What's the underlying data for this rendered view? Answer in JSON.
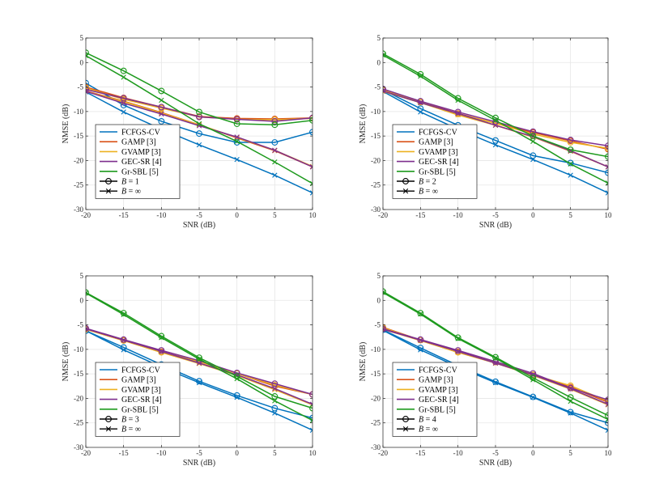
{
  "chart_data": [
    {
      "type": "line",
      "panel": "top-left",
      "xlabel": "SNR (dB)",
      "ylabel": "NMSE (dB)",
      "xlim": [
        -20,
        10
      ],
      "ylim": [
        -30,
        5
      ],
      "xticks": [
        -20,
        -15,
        -10,
        -5,
        0,
        5,
        10
      ],
      "yticks": [
        5,
        0,
        -5,
        -10,
        -15,
        -20,
        -25,
        -30
      ],
      "grid": true,
      "legend_position": "bottom-left",
      "legend_labels": [
        "FCFGS-CV",
        "GAMP [3]",
        "GVAMP [3]",
        "GEC-SR [4]",
        "Gr-SBL [5]"
      ],
      "marker_legend": [
        {
          "marker": "circle",
          "label_var": "B",
          "label_val": "1"
        },
        {
          "marker": "cross",
          "label_var": "B",
          "label_val": "∞"
        }
      ],
      "x": [
        -20,
        -15,
        -10,
        -5,
        0,
        5,
        10
      ],
      "series": [
        {
          "name": "FCFGS-CV",
          "marker": "circle",
          "values": [
            -4.2,
            -8.7,
            -12.0,
            -14.5,
            -16.3,
            -16.3,
            -14.2
          ]
        },
        {
          "name": "FCFGS-CV",
          "marker": "cross",
          "values": [
            -6.0,
            -10.1,
            -13.6,
            -16.8,
            -19.8,
            -23.0,
            -26.6
          ]
        },
        {
          "name": "GAMP [3]",
          "marker": "circle",
          "values": [
            -5.0,
            -7.2,
            -9.1,
            -11.0,
            -11.4,
            -11.5,
            -11.3
          ]
        },
        {
          "name": "GAMP [3]",
          "marker": "cross",
          "values": [
            -5.8,
            -7.9,
            -10.2,
            -12.7,
            -15.4,
            -18.0,
            -21.3
          ]
        },
        {
          "name": "GVAMP [3]",
          "marker": "circle",
          "values": [
            -5.2,
            -7.5,
            -9.3,
            -11.1,
            -11.6,
            -11.7,
            -11.4
          ]
        },
        {
          "name": "GVAMP [3]",
          "marker": "cross",
          "values": [
            -5.9,
            -8.0,
            -10.3,
            -12.7,
            -15.3,
            -17.9,
            -21.2
          ]
        },
        {
          "name": "GEC-SR [4]",
          "marker": "circle",
          "values": [
            -5.5,
            -7.3,
            -9.1,
            -11.1,
            -11.6,
            -12.0,
            -11.3
          ]
        },
        {
          "name": "GEC-SR [4]",
          "marker": "cross",
          "values": [
            -5.9,
            -8.3,
            -10.5,
            -12.9,
            -15.2,
            -17.9,
            -21.3
          ]
        },
        {
          "name": "Gr-SBL [5]",
          "marker": "circle",
          "values": [
            2.0,
            -1.7,
            -5.8,
            -10.1,
            -12.5,
            -12.7,
            -11.8
          ]
        },
        {
          "name": "Gr-SBL [5]",
          "marker": "cross",
          "values": [
            1.4,
            -3.0,
            -7.7,
            -12.5,
            -16.1,
            -20.3,
            -24.7
          ]
        }
      ]
    },
    {
      "type": "line",
      "panel": "top-right",
      "xlabel": "SNR (dB)",
      "ylabel": "NMSE (dB)",
      "xlim": [
        -20,
        10
      ],
      "ylim": [
        -30,
        5
      ],
      "xticks": [
        -20,
        -15,
        -10,
        -5,
        0,
        5,
        10
      ],
      "yticks": [
        5,
        0,
        -5,
        -10,
        -15,
        -20,
        -25,
        -30
      ],
      "grid": true,
      "legend_position": "bottom-left",
      "legend_labels": [
        "FCFGS-CV",
        "GAMP [3]",
        "GVAMP [3]",
        "GEC-SR [4]",
        "Gr-SBL [5]"
      ],
      "marker_legend": [
        {
          "marker": "circle",
          "label_var": "B",
          "label_val": "2"
        },
        {
          "marker": "cross",
          "label_var": "B",
          "label_val": "∞"
        }
      ],
      "x": [
        -20,
        -15,
        -10,
        -5,
        0,
        5,
        10
      ],
      "series": [
        {
          "name": "FCFGS-CV",
          "marker": "circle",
          "values": [
            -5.6,
            -9.4,
            -12.8,
            -15.9,
            -19.0,
            -20.5,
            -22.5
          ]
        },
        {
          "name": "FCFGS-CV",
          "marker": "cross",
          "values": [
            -5.9,
            -10.1,
            -13.6,
            -16.8,
            -19.8,
            -23.0,
            -26.6
          ]
        },
        {
          "name": "GAMP [3]",
          "marker": "circle",
          "values": [
            -5.5,
            -8.0,
            -10.4,
            -12.4,
            -14.3,
            -16.0,
            -17.7
          ]
        },
        {
          "name": "GAMP [3]",
          "marker": "cross",
          "values": [
            -5.8,
            -8.2,
            -10.6,
            -12.8,
            -15.2,
            -18.1,
            -21.3
          ]
        },
        {
          "name": "GVAMP [3]",
          "marker": "circle",
          "values": [
            -5.6,
            -8.1,
            -10.5,
            -12.4,
            -14.6,
            -16.3,
            -17.5
          ]
        },
        {
          "name": "GVAMP [3]",
          "marker": "cross",
          "values": [
            -5.9,
            -8.2,
            -10.7,
            -12.8,
            -15.2,
            -18.0,
            -21.3
          ]
        },
        {
          "name": "GEC-SR [4]",
          "marker": "circle",
          "values": [
            -5.4,
            -7.9,
            -10.1,
            -12.1,
            -14.1,
            -15.8,
            -17.0
          ]
        },
        {
          "name": "GEC-SR [4]",
          "marker": "cross",
          "values": [
            -5.8,
            -8.2,
            -10.4,
            -12.8,
            -15.1,
            -18.0,
            -21.3
          ]
        },
        {
          "name": "Gr-SBL [5]",
          "marker": "circle",
          "values": [
            1.8,
            -2.4,
            -7.3,
            -11.3,
            -15.0,
            -17.8,
            -19.2
          ]
        },
        {
          "name": "Gr-SBL [5]",
          "marker": "cross",
          "values": [
            1.5,
            -2.8,
            -7.7,
            -11.8,
            -16.1,
            -20.7,
            -24.6
          ]
        }
      ]
    },
    {
      "type": "line",
      "panel": "bottom-left",
      "xlabel": "SNR (dB)",
      "ylabel": "NMSE (dB)",
      "xlim": [
        -20,
        10
      ],
      "ylim": [
        -30,
        5
      ],
      "xticks": [
        -20,
        -15,
        -10,
        -5,
        0,
        5,
        10
      ],
      "yticks": [
        5,
        0,
        -5,
        -10,
        -15,
        -20,
        -25,
        -30
      ],
      "grid": true,
      "legend_position": "bottom-left",
      "legend_labels": [
        "FCFGS-CV",
        "GAMP [3]",
        "GVAMP [3]",
        "GEC-SR [4]",
        "Gr-SBL [5]"
      ],
      "marker_legend": [
        {
          "marker": "circle",
          "label_var": "B",
          "label_val": "3"
        },
        {
          "marker": "cross",
          "label_var": "B",
          "label_val": "∞"
        }
      ],
      "x": [
        -20,
        -15,
        -10,
        -5,
        0,
        5,
        10
      ],
      "series": [
        {
          "name": "FCFGS-CV",
          "marker": "circle",
          "values": [
            -6.2,
            -9.6,
            -13.1,
            -16.5,
            -19.4,
            -22.0,
            -24.0
          ]
        },
        {
          "name": "FCFGS-CV",
          "marker": "cross",
          "values": [
            -6.2,
            -10.1,
            -13.6,
            -16.8,
            -19.8,
            -23.0,
            -26.5
          ]
        },
        {
          "name": "GAMP [3]",
          "marker": "circle",
          "values": [
            -5.8,
            -8.1,
            -10.5,
            -12.5,
            -14.9,
            -17.5,
            -19.2
          ]
        },
        {
          "name": "GAMP [3]",
          "marker": "cross",
          "values": [
            -5.9,
            -8.2,
            -10.6,
            -12.8,
            -15.3,
            -18.2,
            -21.3
          ]
        },
        {
          "name": "GVAMP [3]",
          "marker": "circle",
          "values": [
            -5.9,
            -8.2,
            -10.6,
            -12.5,
            -14.9,
            -17.3,
            -19.2
          ]
        },
        {
          "name": "GVAMP [3]",
          "marker": "cross",
          "values": [
            -5.9,
            -8.2,
            -10.6,
            -12.9,
            -15.3,
            -18.2,
            -21.3
          ]
        },
        {
          "name": "GEC-SR [4]",
          "marker": "circle",
          "values": [
            -5.7,
            -8.0,
            -10.2,
            -12.3,
            -14.8,
            -17.0,
            -19.2
          ]
        },
        {
          "name": "GEC-SR [4]",
          "marker": "cross",
          "values": [
            -5.8,
            -8.1,
            -10.4,
            -12.8,
            -15.2,
            -18.0,
            -21.2
          ]
        },
        {
          "name": "Gr-SBL [5]",
          "marker": "circle",
          "values": [
            1.6,
            -2.6,
            -7.3,
            -11.7,
            -15.5,
            -19.6,
            -22.0
          ]
        },
        {
          "name": "Gr-SBL [5]",
          "marker": "cross",
          "values": [
            1.5,
            -2.9,
            -7.6,
            -12.0,
            -16.0,
            -20.5,
            -24.5
          ]
        }
      ]
    },
    {
      "type": "line",
      "panel": "bottom-right",
      "xlabel": "SNR (dB)",
      "ylabel": "NMSE (dB)",
      "xlim": [
        -20,
        10
      ],
      "ylim": [
        -30,
        5
      ],
      "xticks": [
        -20,
        -15,
        -10,
        -5,
        0,
        5,
        10
      ],
      "yticks": [
        5,
        0,
        -5,
        -10,
        -15,
        -20,
        -25,
        -30
      ],
      "grid": true,
      "legend_position": "bottom-left",
      "legend_labels": [
        "FCFGS-CV",
        "GAMP [3]",
        "GVAMP [3]",
        "GEC-SR [4]",
        "Gr-SBL [5]"
      ],
      "marker_legend": [
        {
          "marker": "circle",
          "label_var": "B",
          "label_val": "4"
        },
        {
          "marker": "cross",
          "label_var": "B",
          "label_val": "∞"
        }
      ],
      "x": [
        -20,
        -15,
        -10,
        -5,
        0,
        5,
        10
      ],
      "series": [
        {
          "name": "FCFGS-CV",
          "marker": "circle",
          "values": [
            -6.0,
            -9.7,
            -13.3,
            -16.6,
            -19.7,
            -22.8,
            -25.0
          ]
        },
        {
          "name": "FCFGS-CV",
          "marker": "cross",
          "values": [
            -6.1,
            -10.1,
            -13.6,
            -16.8,
            -19.8,
            -23.0,
            -26.5
          ]
        },
        {
          "name": "GAMP [3]",
          "marker": "circle",
          "values": [
            -5.5,
            -8.1,
            -10.5,
            -12.6,
            -15.2,
            -17.7,
            -20.8
          ]
        },
        {
          "name": "GAMP [3]",
          "marker": "cross",
          "values": [
            -5.8,
            -8.2,
            -10.6,
            -12.8,
            -15.3,
            -18.1,
            -21.3
          ]
        },
        {
          "name": "GVAMP [3]",
          "marker": "circle",
          "values": [
            -5.6,
            -8.1,
            -10.6,
            -12.6,
            -15.2,
            -17.4,
            -20.6
          ]
        },
        {
          "name": "GVAMP [3]",
          "marker": "cross",
          "values": [
            -5.9,
            -8.2,
            -10.6,
            -12.8,
            -15.3,
            -18.1,
            -21.3
          ]
        },
        {
          "name": "GEC-SR [4]",
          "marker": "circle",
          "values": [
            -5.8,
            -8.0,
            -10.2,
            -12.5,
            -14.9,
            -17.9,
            -20.3
          ]
        },
        {
          "name": "GEC-SR [4]",
          "marker": "cross",
          "values": [
            -5.9,
            -8.1,
            -10.4,
            -12.8,
            -15.2,
            -18.0,
            -21.2
          ]
        },
        {
          "name": "Gr-SBL [5]",
          "marker": "circle",
          "values": [
            1.8,
            -2.6,
            -7.6,
            -11.6,
            -15.8,
            -19.8,
            -23.5
          ]
        },
        {
          "name": "Gr-SBL [5]",
          "marker": "cross",
          "values": [
            1.6,
            -2.8,
            -7.8,
            -11.8,
            -16.2,
            -20.6,
            -24.3
          ]
        }
      ]
    }
  ],
  "series_colors": {
    "FCFGS-CV": "#0072BD",
    "GAMP [3]": "#D95319",
    "GVAMP [3]": "#EDB120",
    "GEC-SR [4]": "#7E2F8E",
    "Gr-SBL [5]": "#1E9A1E"
  },
  "axis_color": "#262626",
  "grid_color": "#e6e6e6"
}
